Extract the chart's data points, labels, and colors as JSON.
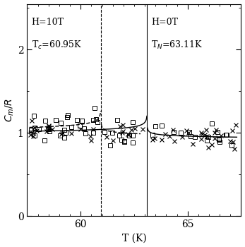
{
  "title": "",
  "xlabel": "T (K)",
  "ylabel": "$C_m/R$",
  "xlim": [
    57.5,
    67.5
  ],
  "ylim": [
    0,
    2.55
  ],
  "yticks": [
    0,
    1,
    2
  ],
  "xticks": [
    60,
    65
  ],
  "Tc": 60.95,
  "TN": 63.11,
  "text_H10": "H=10T",
  "text_Tc": "T$_c$=60.95K",
  "text_H0": "H=0T",
  "text_TN": "T$_N$=63.11K",
  "annotation_fontsize": 9,
  "alpha": 0.11,
  "A_minus_10": 0.28,
  "A_plus_10": 0.18,
  "A_minus_0": 0.24,
  "A_plus_0": 0.15,
  "B": 0.82
}
